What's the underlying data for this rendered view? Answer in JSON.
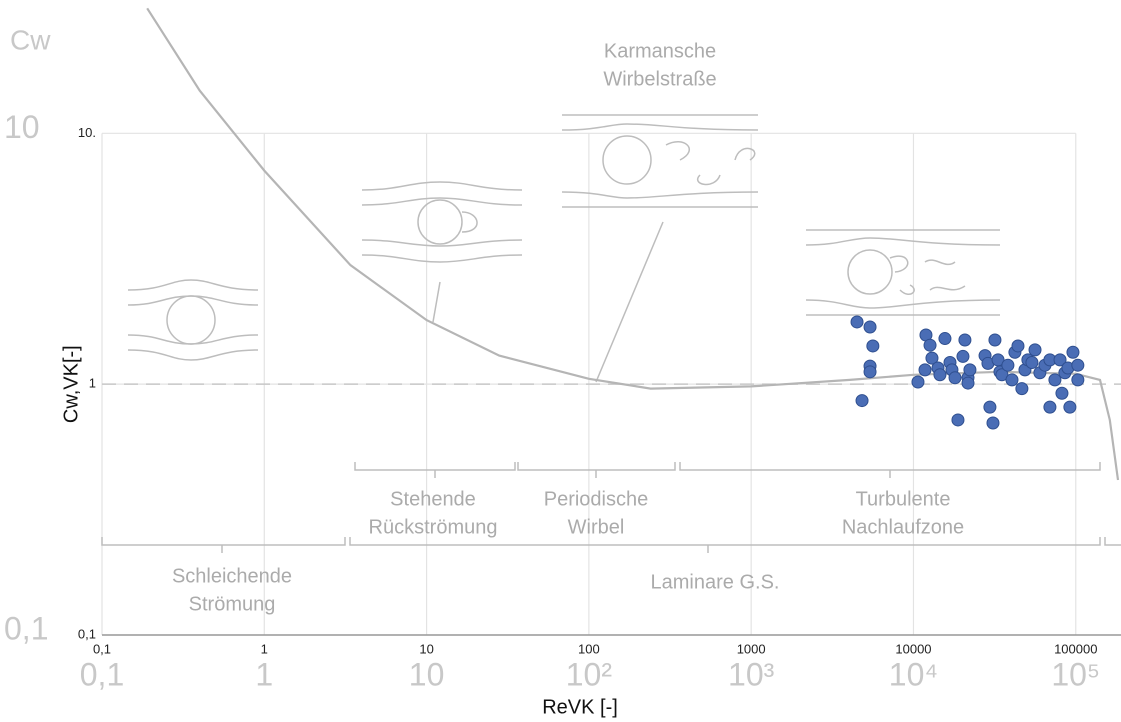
{
  "chart_data": {
    "type": "scatter",
    "xscale": "log",
    "yscale": "log",
    "xlim": [
      0.1,
      190000
    ],
    "ylim": [
      0.1,
      34
    ],
    "xticks": [
      {
        "value": 0.1,
        "label": "0,1"
      },
      1,
      10,
      100,
      1000,
      10000,
      100000
    ],
    "secondary_xtick_labels": [
      "0,1",
      "1",
      "10",
      "10²",
      "10³",
      "10⁴",
      "10⁵"
    ],
    "yticks": [
      {
        "value": 0.1,
        "label": "0,1"
      },
      1,
      {
        "value": 10,
        "label": "10."
      }
    ],
    "secondary_ytick_labels": [
      "0,1",
      null,
      "10"
    ],
    "x_label": "ReVK [-]",
    "y_label": "Cw,VK[-]",
    "corner_label": "Cw",
    "grid": true,
    "reference_line": 1,
    "annotations": [
      {
        "lines": [
          "Karmansche",
          "Wirbelstraße"
        ]
      },
      {
        "lines": [
          "Stehende",
          "Rückströmung"
        ]
      },
      {
        "lines": [
          "Periodische",
          "Wirbel"
        ]
      },
      {
        "lines": [
          "Turbulente",
          "Nachlaufzone"
        ]
      },
      {
        "lines": [
          "Schleichende",
          "Strömung"
        ]
      },
      {
        "lines": [
          "Laminare G.S."
        ]
      }
    ],
    "line": {
      "color": "#b5b5b5",
      "x": [
        0.19,
        0.4,
        1,
        3.4,
        10,
        28,
        100,
        240,
        1000,
        4060,
        10000,
        34000,
        100000,
        141000,
        162000,
        182000
      ],
      "values": [
        31.5,
        14.8,
        7.1,
        2.98,
        1.8,
        1.3,
        1.05,
        0.96,
        0.98,
        1.04,
        1.09,
        1.12,
        1.1,
        1.04,
        0.72,
        0.415
      ]
    },
    "points": {
      "color": "#4a6db5",
      "x": [
        4490,
        4820,
        5400,
        5620,
        5400,
        5400,
        10660,
        11780,
        11940,
        12650,
        13000,
        14160,
        14560,
        15630,
        16790,
        17260,
        18030,
        18800,
        20750,
        20180,
        21680,
        22280,
        21680,
        27610,
        28770,
        30900,
        29580,
        31770,
        33190,
        34120,
        35080,
        38190,
        40460,
        42170,
        44050,
        46560,
        48640,
        50700,
        53700,
        56100,
        60100,
        64600,
        69300,
        69300,
        74400,
        80000,
        82200,
        85700,
        89500,
        92000,
        96100,
        103000,
        103000
      ],
      "values": [
        1.77,
        0.86,
        1.69,
        1.42,
        1.18,
        1.12,
        1.02,
        1.14,
        1.57,
        1.43,
        1.27,
        1.16,
        1.09,
        1.52,
        1.22,
        1.14,
        1.06,
        0.72,
        1.5,
        1.29,
        1.06,
        1.14,
        1.01,
        1.3,
        1.21,
        0.7,
        0.81,
        1.5,
        1.25,
        1.12,
        1.09,
        1.19,
        1.04,
        1.34,
        1.42,
        0.96,
        1.14,
        1.25,
        1.22,
        1.37,
        1.11,
        1.19,
        1.25,
        0.81,
        1.04,
        1.25,
        0.92,
        1.11,
        1.16,
        0.81,
        1.34,
        1.19,
        1.04
      ]
    }
  }
}
